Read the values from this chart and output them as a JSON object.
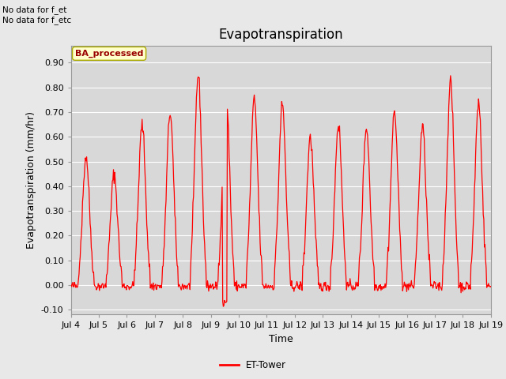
{
  "title": "Evapotranspiration",
  "ylabel": "Evapotranspiration (mm/hr)",
  "xlabel": "Time",
  "ylim": [
    -0.12,
    0.97
  ],
  "yticks": [
    -0.1,
    0.0,
    0.1,
    0.2,
    0.3,
    0.4,
    0.5,
    0.6,
    0.7,
    0.8,
    0.9
  ],
  "line_color": "#ff0000",
  "line_width": 0.9,
  "bg_color": "#e8e8e8",
  "plot_bg_color": "#d8d8d8",
  "title_fontsize": 12,
  "label_fontsize": 9,
  "tick_fontsize": 8,
  "annotation_text1": "No data for f_et",
  "annotation_text2": "No data for f_etc",
  "legend_label": "ET-Tower",
  "box_label": "BA_processed",
  "xtick_labels": [
    "Jul 4",
    "Jul 5",
    "Jul 6",
    "Jul 7",
    "Jul 8",
    "Jul 9",
    "Jul 10",
    "Jul 11",
    "Jul 12",
    "Jul 13",
    "Jul 14",
    "Jul 15",
    "Jul 16",
    "Jul 17",
    "Jul 18",
    "Jul 19"
  ]
}
